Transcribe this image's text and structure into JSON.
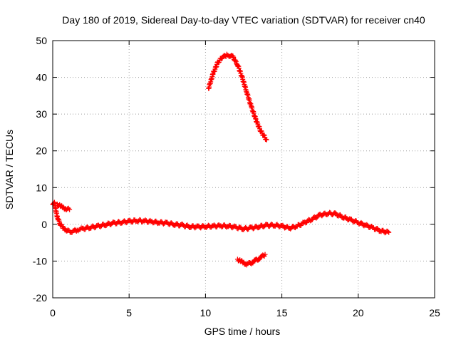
{
  "colors": {
    "series": "#ff0000",
    "grid": "#a0a0a0",
    "axis": "#000000",
    "background": "#ffffff"
  },
  "chart_data": {
    "type": "scatter",
    "title": "Day 180 of 2019, Sidereal Day-to-day VTEC variation (SDTVAR) for receiver cn40",
    "xlabel": "GPS time / hours",
    "ylabel": "SDTVAR / TECUs",
    "xlim": [
      0,
      25
    ],
    "ylim": [
      -20,
      50
    ],
    "grid": true,
    "marker": "plus",
    "x_ticks": [
      0,
      5,
      10,
      15,
      20,
      25
    ],
    "x_tick_labels": [
      "0",
      "5",
      "10",
      "15",
      "20",
      "25"
    ],
    "y_ticks": [
      -20,
      -10,
      0,
      10,
      20,
      30,
      40,
      50
    ],
    "y_tick_labels": [
      "-20",
      "-10",
      "0",
      "10",
      "20",
      "30",
      "40",
      "50"
    ],
    "series": [
      {
        "name": "main",
        "x": [
          0.0,
          0.1,
          0.3,
          0.5,
          0.7,
          0.9,
          1.0,
          1.2,
          1.4,
          1.6,
          1.8,
          2.0,
          2.5,
          3.0,
          3.5,
          4.0,
          4.5,
          5.0,
          5.5,
          6.0,
          6.5,
          7.0,
          7.5,
          8.0,
          8.5,
          9.0,
          9.5,
          10.0,
          10.5,
          11.0,
          11.5,
          12.0,
          12.5,
          13.0,
          13.5,
          14.0,
          14.5,
          15.0,
          15.5,
          16.0,
          16.5,
          17.0,
          17.5,
          18.0,
          18.5,
          19.0,
          19.5,
          20.0,
          20.5,
          21.0,
          21.5,
          22.0
        ],
        "y": [
          5.5,
          6.0,
          2.0,
          0.0,
          -1.0,
          -1.5,
          -1.8,
          -2.0,
          -1.8,
          -1.5,
          -1.3,
          -1.2,
          -0.8,
          -0.5,
          0.0,
          0.3,
          0.6,
          0.8,
          1.0,
          0.9,
          0.7,
          0.5,
          0.3,
          0.0,
          -0.3,
          -0.6,
          -0.7,
          -0.6,
          -0.5,
          -0.4,
          -0.5,
          -0.8,
          -1.2,
          -1.0,
          -0.6,
          -0.3,
          -0.2,
          -0.5,
          -1.0,
          -0.5,
          0.5,
          1.5,
          2.5,
          3.0,
          2.8,
          2.0,
          1.2,
          0.5,
          -0.3,
          -1.0,
          -1.8,
          -2.2
        ]
      },
      {
        "name": "side-branch",
        "x": [
          0.3,
          0.5,
          0.7,
          0.9,
          1.1
        ],
        "y": [
          5.5,
          5.0,
          4.5,
          4.2,
          4.0
        ]
      },
      {
        "name": "upper-arc",
        "x": [
          10.2,
          10.5,
          10.8,
          11.1,
          11.4,
          11.6,
          11.8,
          12.1,
          12.4,
          12.7,
          13.0,
          13.3,
          13.6,
          14.0
        ],
        "y": [
          37.0,
          41.0,
          44.0,
          45.5,
          46.0,
          46.0,
          45.5,
          43.5,
          40.0,
          36.0,
          32.0,
          28.5,
          25.5,
          23.0
        ]
      },
      {
        "name": "lower-arc",
        "x": [
          12.1,
          12.3,
          12.5,
          12.7,
          12.9,
          13.1,
          13.3,
          13.5,
          13.7,
          13.9
        ],
        "y": [
          -9.5,
          -10.0,
          -10.5,
          -10.8,
          -10.7,
          -10.2,
          -9.8,
          -9.3,
          -8.8,
          -8.2
        ]
      }
    ]
  }
}
